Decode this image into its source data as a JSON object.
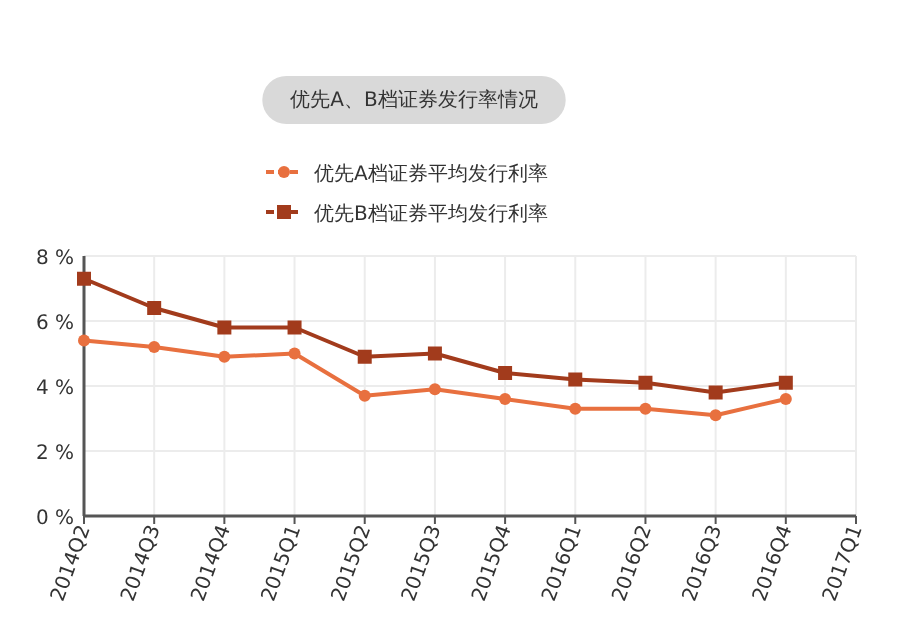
{
  "chart_data": {
    "type": "line",
    "title": "优先A、B档证券发行率情况",
    "categories": [
      "2014Q2",
      "2014Q3",
      "2014Q4",
      "2015Q1",
      "2015Q2",
      "2015Q3",
      "2015Q4",
      "2016Q1",
      "2016Q2",
      "2016Q3",
      "2016Q4",
      "2017Q1"
    ],
    "series": [
      {
        "name": "优先A档证券平均发行利率",
        "color": "#e8703f",
        "marker": "circle",
        "values": [
          5.4,
          5.2,
          4.9,
          5.0,
          3.7,
          3.9,
          3.6,
          3.3,
          3.3,
          3.1,
          3.6,
          null
        ]
      },
      {
        "name": "优先B档证券平均发行利率",
        "color": "#a23b1c",
        "marker": "square",
        "values": [
          7.3,
          6.4,
          5.8,
          5.8,
          4.9,
          5.0,
          4.4,
          4.2,
          4.1,
          3.8,
          4.1,
          null
        ]
      }
    ],
    "ylim": [
      0,
      8
    ],
    "yticks": [
      {
        "value": 0,
        "label": "0 %"
      },
      {
        "value": 2,
        "label": "2 %"
      },
      {
        "value": 4,
        "label": "4 %"
      },
      {
        "value": 6,
        "label": "6 %"
      },
      {
        "value": 8,
        "label": "8 %"
      }
    ],
    "grid": true,
    "legend": "top",
    "line_style": "solid"
  }
}
